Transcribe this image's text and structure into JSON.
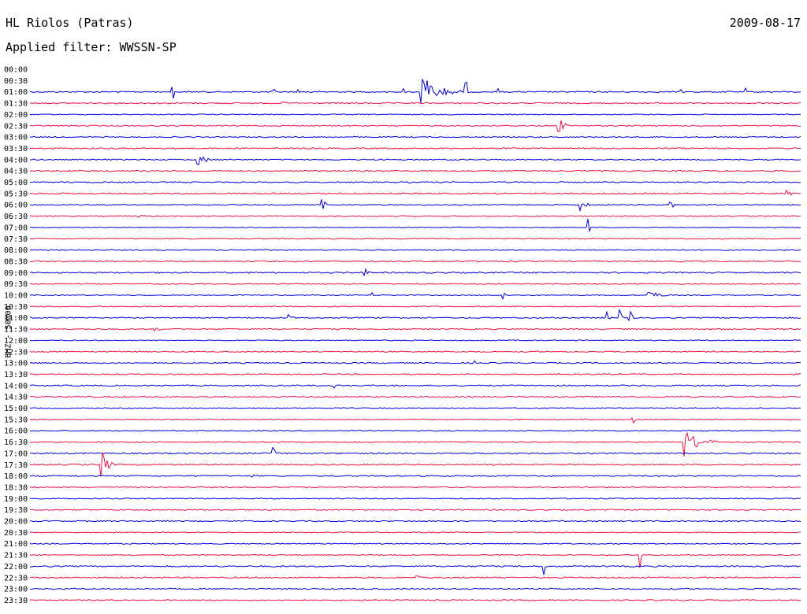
{
  "header": {
    "station": "HL Riolos (Patras)",
    "date": "2009-08-17",
    "filter": "Applied filter: WWSSN-SP"
  },
  "chart_data": {
    "type": "line",
    "title": "HL Riolos (Patras)",
    "subtitle": "Applied filter: WWSSN-SP",
    "ylabel": "BHZ - 50000",
    "xlabel": "",
    "grid": false,
    "colors": [
      "#0000e0",
      "#ee1144"
    ],
    "tick_labels": [
      "00:00",
      "00:30",
      "01:00",
      "01:30",
      "02:00",
      "02:30",
      "03:00",
      "03:30",
      "04:00",
      "04:30",
      "05:00",
      "05:30",
      "06:00",
      "06:30",
      "07:00",
      "07:30",
      "08:00",
      "08:30",
      "09:00",
      "09:30",
      "10:00",
      "10:30",
      "11:00",
      "11:30",
      "12:00",
      "12:30",
      "13:00",
      "13:30",
      "14:00",
      "14:30",
      "15:00",
      "15:30",
      "16:00",
      "16:30",
      "17:00",
      "17:30",
      "18:00",
      "18:30",
      "19:00",
      "19:30",
      "20:00",
      "20:30",
      "21:00",
      "21:30",
      "22:00",
      "22:30",
      "23:00",
      "23:30"
    ],
    "trace_line_from": "01:00",
    "events": [
      {
        "row": "01:00",
        "minute": 5.5,
        "amp": 0.8,
        "dur": 0.15
      },
      {
        "row": "01:00",
        "minute": 9.4,
        "amp": 0.6,
        "dur": 0.15
      },
      {
        "row": "01:00",
        "minute": 10.4,
        "amp": 0.3,
        "dur": 0.1
      },
      {
        "row": "01:00",
        "minute": 10.9,
        "amp": 0.3,
        "dur": 0.1
      },
      {
        "row": "01:00",
        "minute": 14.5,
        "amp": 0.5,
        "dur": 0.1
      },
      {
        "row": "01:00",
        "minute": 15.2,
        "amp": 1.2,
        "dur": 1.6
      },
      {
        "row": "01:00",
        "minute": 16.9,
        "amp": 1.8,
        "dur": 0.15
      },
      {
        "row": "01:00",
        "minute": 18.2,
        "amp": 0.3,
        "dur": 0.1
      },
      {
        "row": "01:00",
        "minute": 25.3,
        "amp": 0.6,
        "dur": 0.1
      },
      {
        "row": "01:00",
        "minute": 25.8,
        "amp": 0.4,
        "dur": 0.1
      },
      {
        "row": "01:00",
        "minute": 27.2,
        "amp": 0.2,
        "dur": 0.1
      },
      {
        "row": "01:00",
        "minute": 27.8,
        "amp": 0.5,
        "dur": 0.1
      },
      {
        "row": "01:30",
        "minute": 9.8,
        "amp": 0.1,
        "dur": 0.8
      },
      {
        "row": "02:30",
        "minute": 20.5,
        "amp": 0.8,
        "dur": 0.6
      },
      {
        "row": "04:00",
        "minute": 6.5,
        "amp": 0.6,
        "dur": 0.6
      },
      {
        "row": "06:00",
        "minute": 11.3,
        "amp": 1.0,
        "dur": 0.3
      },
      {
        "row": "06:00",
        "minute": 21.4,
        "amp": 0.6,
        "dur": 0.5
      },
      {
        "row": "06:00",
        "minute": 24.9,
        "amp": 0.5,
        "dur": 0.3
      },
      {
        "row": "05:30",
        "minute": 29.4,
        "amp": 0.5,
        "dur": 0.4
      },
      {
        "row": "06:30",
        "minute": 4.2,
        "amp": 0.15,
        "dur": 1.0
      },
      {
        "row": "07:00",
        "minute": 21.7,
        "amp": 1.2,
        "dur": 0.1
      },
      {
        "row": "09:00",
        "minute": 13.0,
        "amp": 0.3,
        "dur": 0.4
      },
      {
        "row": "10:00",
        "minute": 13.3,
        "amp": 0.3,
        "dur": 0.1
      },
      {
        "row": "10:00",
        "minute": 18.4,
        "amp": 0.5,
        "dur": 0.1
      },
      {
        "row": "10:00",
        "minute": 24.0,
        "amp": 0.4,
        "dur": 1.0
      },
      {
        "row": "11:00",
        "minute": 10.0,
        "amp": 0.4,
        "dur": 0.3
      },
      {
        "row": "11:00",
        "minute": 22.4,
        "amp": 0.5,
        "dur": 0.2
      },
      {
        "row": "11:00",
        "minute": 22.9,
        "amp": 0.6,
        "dur": 0.2
      },
      {
        "row": "11:00",
        "minute": 23.3,
        "amp": 0.8,
        "dur": 0.2
      },
      {
        "row": "11:30",
        "minute": 4.8,
        "amp": 0.2,
        "dur": 0.5
      },
      {
        "row": "13:00",
        "minute": 17.3,
        "amp": 0.15,
        "dur": 0.3
      },
      {
        "row": "14:00",
        "minute": 11.8,
        "amp": 0.4,
        "dur": 0.1
      },
      {
        "row": "15:30",
        "minute": 23.4,
        "amp": 0.5,
        "dur": 0.2
      },
      {
        "row": "16:30",
        "minute": 25.4,
        "amp": 1.0,
        "dur": 1.4
      },
      {
        "row": "17:00",
        "minute": 9.4,
        "amp": 1.0,
        "dur": 0.3
      },
      {
        "row": "17:30",
        "minute": 2.7,
        "amp": 1.3,
        "dur": 0.6
      },
      {
        "row": "18:00",
        "minute": 8.6,
        "amp": 0.4,
        "dur": 0.2
      },
      {
        "row": "21:30",
        "minute": 23.7,
        "amp": 1.0,
        "dur": 0.2
      },
      {
        "row": "22:00",
        "minute": 20.0,
        "amp": 0.8,
        "dur": 0.1
      },
      {
        "row": "22:30",
        "minute": 15.0,
        "amp": 0.2,
        "dur": 0.4
      }
    ]
  }
}
